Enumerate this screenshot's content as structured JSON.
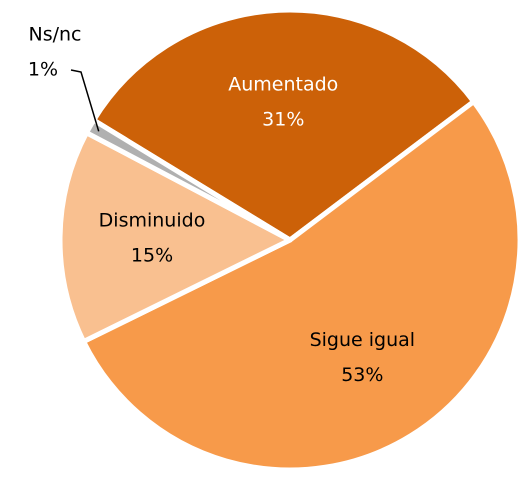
{
  "chart_data": {
    "type": "pie",
    "categories": [
      "Aumentado",
      "Sigue igual",
      "Disminuido",
      "Ns/nc"
    ],
    "values": [
      31,
      53,
      15,
      1
    ],
    "value_labels": [
      "31%",
      "53%",
      "15%",
      "1%"
    ],
    "colors": [
      "#cc6108",
      "#f79a4a",
      "#f9c090",
      "#b0b0b0"
    ]
  }
}
